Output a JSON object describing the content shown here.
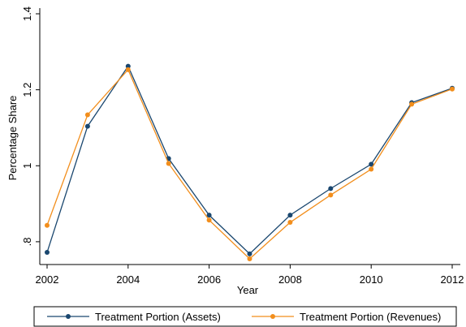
{
  "chart_data": {
    "type": "line",
    "x_label": "Year",
    "y_label": "Percentage Share",
    "x": [
      2002,
      2003,
      2004,
      2005,
      2006,
      2007,
      2008,
      2009,
      2010,
      2011,
      2012
    ],
    "series": [
      {
        "name": "Treatment Portion (Assets)",
        "color": "#1a476f",
        "values": [
          0.772,
          1.104,
          1.262,
          1.019,
          0.87,
          0.768,
          0.87,
          0.94,
          1.004,
          1.166,
          1.204
        ]
      },
      {
        "name": "Treatment Portion (Revenues)",
        "color": "#f28e1c",
        "values": [
          0.843,
          1.134,
          1.253,
          1.006,
          0.857,
          0.755,
          0.851,
          0.923,
          0.991,
          1.162,
          1.202
        ]
      }
    ],
    "xlim": [
      2002,
      2012
    ],
    "xticks": [
      2002,
      2004,
      2006,
      2008,
      2010,
      2012
    ],
    "ylim": [
      0.74,
      1.4
    ],
    "yticks": [
      {
        "value": 0.8,
        "label": ".8"
      },
      1,
      1.2,
      1.4
    ],
    "grid": false,
    "legend": "bottom"
  }
}
